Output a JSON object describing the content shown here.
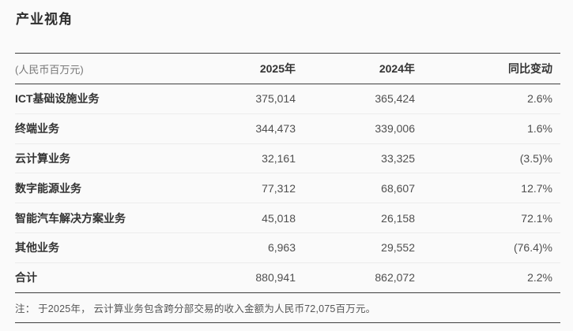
{
  "page": {
    "title": "产业视角",
    "note": "注： 于2025年， 云计算业务包含跨分部交易的收入金额为人民币72,075百万元。"
  },
  "theme": {
    "background_color": "#fafafa",
    "rule_color": "#3e3e3e",
    "row_divider_color": "#ececec",
    "label_text_color": "#333333",
    "value_text_color": "#4f4f4f"
  },
  "table": {
    "unit_label": "(人民币百万元)",
    "columns": [
      "2025年",
      "2024年",
      "同比变动"
    ],
    "rows": [
      {
        "label": "ICT基础设施业务",
        "y2025": "375,014",
        "y2024": "365,424",
        "yoy": "2.6%"
      },
      {
        "label": "终端业务",
        "y2025": "344,473",
        "y2024": "339,006",
        "yoy": "1.6%"
      },
      {
        "label": "云计算业务",
        "y2025": "32,161",
        "y2024": "33,325",
        "yoy": "(3.5)%"
      },
      {
        "label": "数字能源业务",
        "y2025": "77,312",
        "y2024": "68,607",
        "yoy": "12.7%"
      },
      {
        "label": "智能汽车解决方案业务",
        "y2025": "45,018",
        "y2024": "26,158",
        "yoy": "72.1%"
      },
      {
        "label": "其他业务",
        "y2025": "6,963",
        "y2024": "29,552",
        "yoy": "(76.4)%"
      },
      {
        "label": "合计",
        "y2025": "880,941",
        "y2024": "862,072",
        "yoy": "2.2%"
      }
    ]
  }
}
